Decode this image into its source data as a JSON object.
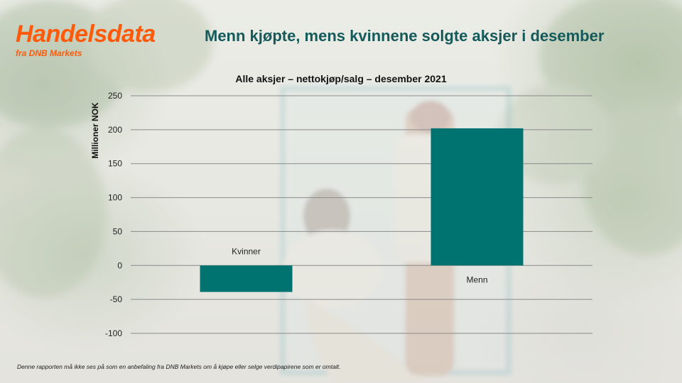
{
  "brand": {
    "title": "Handelsdata",
    "subtitle": "fra DNB Markets"
  },
  "headline": "Menn kjøpte, mens kvinnene solgte aksjer i desember",
  "disclaimer": "Denne rapporten må ikke ses på som en anbefaling fra DNB Markets om å kjøpe eller selge verdipapirene som er omtalt.",
  "colors": {
    "brand": "#ff5a0a",
    "headline": "#145a5a",
    "bar": "#007270",
    "grid": "#8a8a8a"
  },
  "chart_data": {
    "type": "bar",
    "title": "Alle aksjer – nettokjøp/salg – desember 2021",
    "xlabel": "",
    "ylabel": "Millioner NOK",
    "categories": [
      "Kvinner",
      "Menn"
    ],
    "values": [
      -39,
      202
    ],
    "ylim": [
      -100,
      250
    ],
    "yticks": [
      -100,
      -50,
      0,
      50,
      100,
      150,
      200,
      250
    ],
    "ytick_labels": [
      "-100",
      "-50",
      "0",
      "50",
      "100",
      "150",
      "200",
      "250"
    ],
    "grid": true,
    "legend": "none"
  }
}
